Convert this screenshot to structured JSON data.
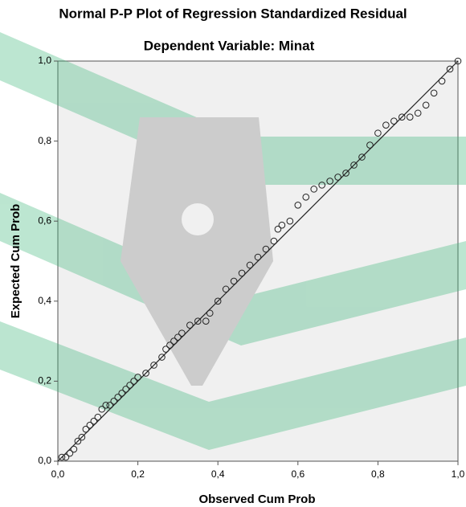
{
  "chart_data": {
    "type": "scatter",
    "title": "Normal P-P Plot of Regression Standardized Residual",
    "subtitle": "Dependent Variable: Minat",
    "x_label": "Observed Cum Prob",
    "y_label": "Expected Cum Prob",
    "xlim": [
      0,
      1
    ],
    "ylim": [
      0,
      1
    ],
    "xticks": [
      {
        "value": 0,
        "label": "0,0"
      },
      {
        "value": 0.2,
        "label": "0,2"
      },
      {
        "value": 0.4,
        "label": "0,4"
      },
      {
        "value": 0.6,
        "label": "0,6"
      },
      {
        "value": 0.8,
        "label": "0,8"
      },
      {
        "value": 1,
        "label": "1,0"
      }
    ],
    "yticks": [
      {
        "value": 0,
        "label": "0,0"
      },
      {
        "value": 0.2,
        "label": "0,2"
      },
      {
        "value": 0.4,
        "label": "0,4"
      },
      {
        "value": 0.6,
        "label": "0,6"
      },
      {
        "value": 0.8,
        "label": "0,8"
      },
      {
        "value": 1,
        "label": "1,0"
      }
    ],
    "color": "#222222",
    "x": [
      0.01,
      0.02,
      0.03,
      0.04,
      0.05,
      0.06,
      0.07,
      0.08,
      0.09,
      0.1,
      0.11,
      0.12,
      0.13,
      0.14,
      0.15,
      0.16,
      0.17,
      0.18,
      0.19,
      0.2,
      0.22,
      0.24,
      0.26,
      0.27,
      0.28,
      0.29,
      0.3,
      0.31,
      0.33,
      0.35,
      0.37,
      0.38,
      0.4,
      0.42,
      0.44,
      0.46,
      0.48,
      0.5,
      0.52,
      0.54,
      0.55,
      0.56,
      0.58,
      0.6,
      0.62,
      0.64,
      0.66,
      0.68,
      0.7,
      0.72,
      0.74,
      0.76,
      0.78,
      0.8,
      0.82,
      0.84,
      0.86,
      0.88,
      0.9,
      0.92,
      0.94,
      0.96,
      0.98,
      1.0
    ],
    "values": [
      0.01,
      0.01,
      0.02,
      0.03,
      0.05,
      0.06,
      0.08,
      0.09,
      0.1,
      0.11,
      0.13,
      0.14,
      0.14,
      0.15,
      0.16,
      0.17,
      0.18,
      0.19,
      0.2,
      0.21,
      0.22,
      0.24,
      0.26,
      0.28,
      0.29,
      0.3,
      0.31,
      0.32,
      0.34,
      0.35,
      0.35,
      0.37,
      0.4,
      0.43,
      0.45,
      0.47,
      0.49,
      0.51,
      0.53,
      0.55,
      0.58,
      0.59,
      0.6,
      0.64,
      0.66,
      0.68,
      0.69,
      0.7,
      0.71,
      0.72,
      0.74,
      0.76,
      0.79,
      0.82,
      0.84,
      0.85,
      0.86,
      0.86,
      0.87,
      0.89,
      0.92,
      0.95,
      0.98,
      1.0
    ]
  }
}
